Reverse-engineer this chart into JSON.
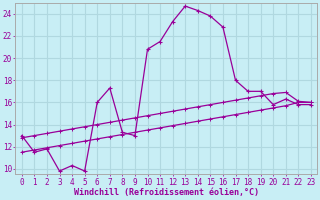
{
  "xlabel": "Windchill (Refroidissement éolien,°C)",
  "background_color": "#c8eef5",
  "grid_color": "#b0d8e0",
  "line_color": "#990099",
  "xlim": [
    -0.5,
    23.5
  ],
  "ylim": [
    9.5,
    25.0
  ],
  "yticks": [
    10,
    12,
    14,
    16,
    18,
    20,
    22,
    24
  ],
  "xticks": [
    0,
    1,
    2,
    3,
    4,
    5,
    6,
    7,
    8,
    9,
    10,
    11,
    12,
    13,
    14,
    15,
    16,
    17,
    18,
    19,
    20,
    21,
    22,
    23
  ],
  "series1_x": [
    0,
    1,
    2,
    3,
    4,
    5,
    6,
    7,
    8,
    9,
    10,
    11,
    12,
    13,
    14,
    15,
    16,
    17,
    18,
    19,
    20,
    21,
    22,
    23
  ],
  "series1_y": [
    13.0,
    11.5,
    11.8,
    9.8,
    10.3,
    9.8,
    16.0,
    17.3,
    13.3,
    13.0,
    20.8,
    21.5,
    23.3,
    24.7,
    24.3,
    23.8,
    22.8,
    18.0,
    17.0,
    17.0,
    15.8,
    16.3,
    15.8,
    15.8
  ],
  "series2_x": [
    0,
    1,
    2,
    3,
    4,
    5,
    6,
    7,
    8,
    9,
    10,
    11,
    12,
    13,
    14,
    15,
    16,
    17,
    18,
    19,
    20,
    21,
    22,
    23
  ],
  "series2_y": [
    11.5,
    11.7,
    11.9,
    12.1,
    12.3,
    12.5,
    12.7,
    12.9,
    13.1,
    13.3,
    13.5,
    13.7,
    13.9,
    14.1,
    14.3,
    14.5,
    14.7,
    14.9,
    15.1,
    15.3,
    15.5,
    15.7,
    16.0,
    16.0
  ],
  "series3_x": [
    0,
    1,
    2,
    3,
    4,
    5,
    6,
    7,
    8,
    9,
    10,
    11,
    12,
    13,
    14,
    15,
    16,
    17,
    18,
    19,
    20,
    21,
    22,
    23
  ],
  "series3_y": [
    12.8,
    13.0,
    13.2,
    13.4,
    13.6,
    13.8,
    14.0,
    14.2,
    14.4,
    14.6,
    14.8,
    15.0,
    15.2,
    15.4,
    15.6,
    15.8,
    16.0,
    16.2,
    16.4,
    16.6,
    16.8,
    16.9,
    16.1,
    16.0
  ],
  "xlabel_fontsize": 6,
  "tick_fontsize": 5.5
}
